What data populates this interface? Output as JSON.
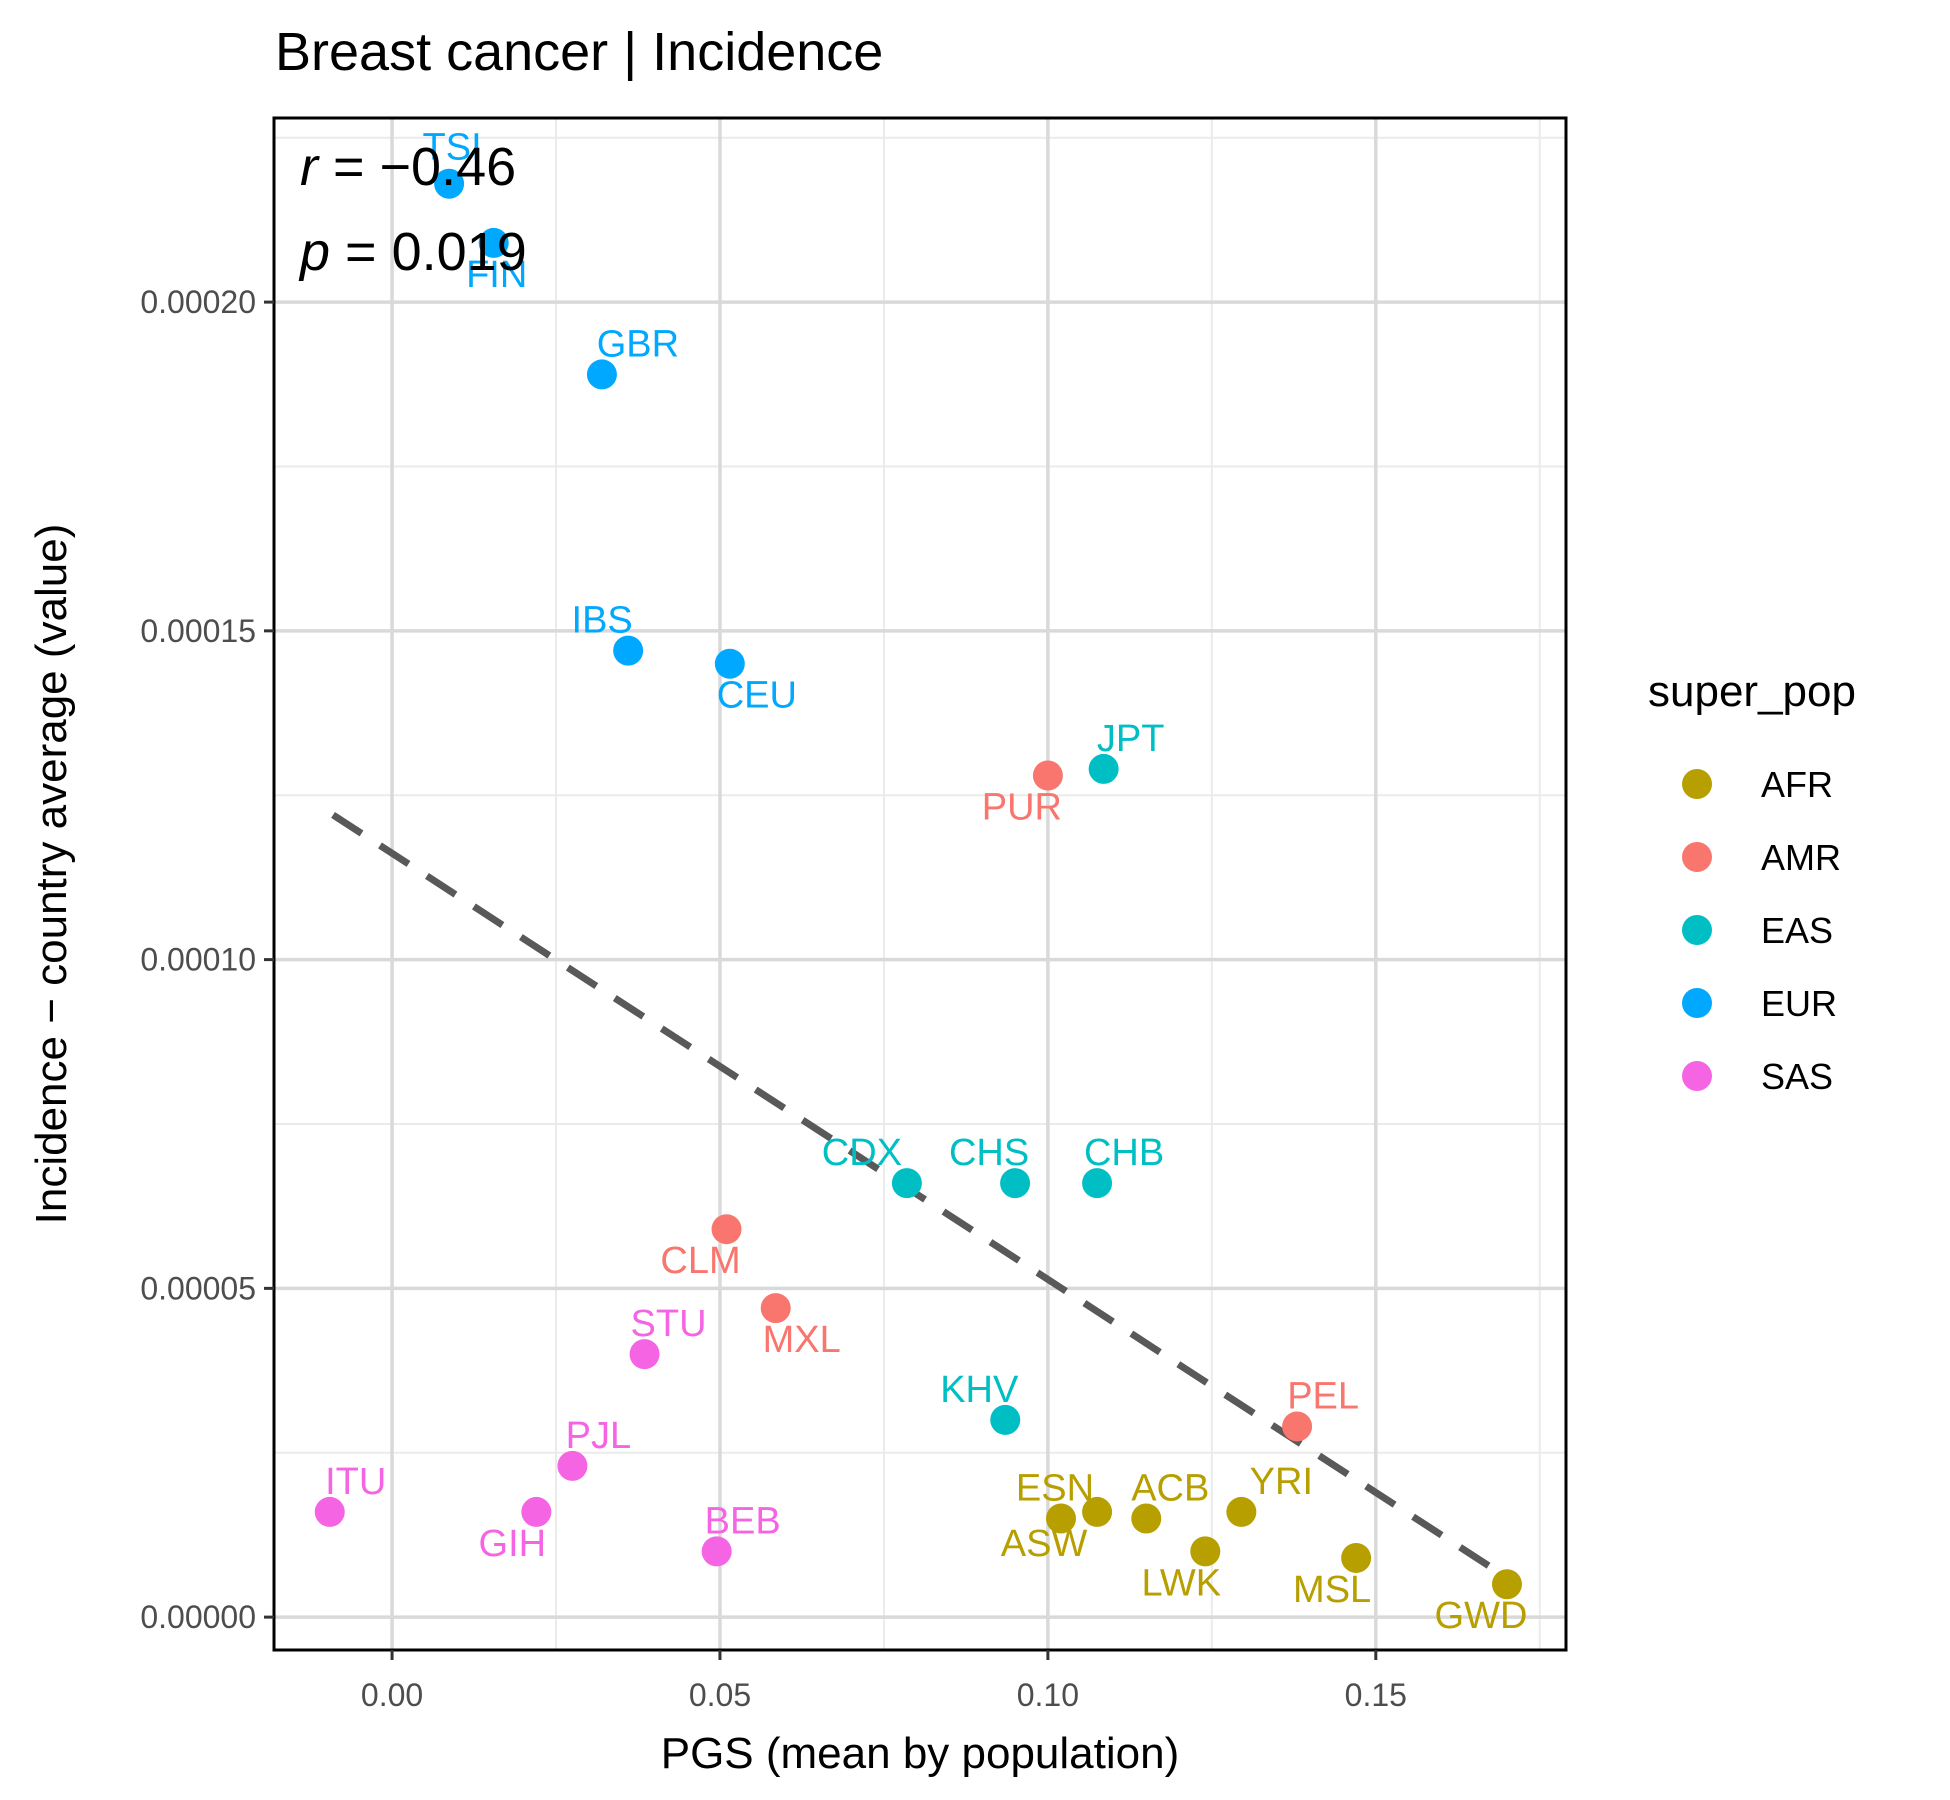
{
  "chart_data": {
    "type": "scatter",
    "title": "Breast cancer | Incidence",
    "xlabel": "PGS (mean by population)",
    "ylabel": "Incidence − country average (value)",
    "xlim": [
      -0.018,
      0.179
    ],
    "ylim": [
      -5e-06,
      0.000228
    ],
    "x_ticks": [
      0.0,
      0.05,
      0.1,
      0.15
    ],
    "x_tick_labels": [
      "0.00",
      "0.05",
      "0.10",
      "0.15"
    ],
    "y_ticks": [
      0.0,
      5e-05,
      0.0001,
      0.00015,
      0.0002
    ],
    "y_tick_labels": [
      "0.00000",
      "0.00005",
      "0.00010",
      "0.00015",
      "0.00020"
    ],
    "grid": true,
    "stats": {
      "r_symbol": "r",
      "r_text": " = −0.46",
      "p_symbol": "p",
      "p_text": " = 0.019"
    },
    "trend_line": {
      "style": "dashed",
      "color": "#595959",
      "x": [
        -0.009,
        0.17
      ],
      "y": [
        0.000122,
        6e-06
      ]
    },
    "legend": {
      "title": "super_pop",
      "position": "right",
      "entries": [
        {
          "name": "AFR",
          "color": "#B79F00"
        },
        {
          "name": "AMR",
          "color": "#F8766D"
        },
        {
          "name": "EAS",
          "color": "#00BFC4"
        },
        {
          "name": "EUR",
          "color": "#00A9FF"
        },
        {
          "name": "SAS",
          "color": "#F564E3"
        }
      ]
    },
    "points": [
      {
        "label": "TSI",
        "group": "EUR",
        "x": 0.0087,
        "y": 0.000218,
        "ldx": 0.03,
        "ldy": -0.06
      },
      {
        "label": "FIN",
        "group": "EUR",
        "x": 0.0155,
        "y": 0.000209,
        "ldx": 0.03,
        "ldy": 0.05
      },
      {
        "label": "GBR",
        "group": "EUR",
        "x": 0.032,
        "y": 0.000189,
        "ldx": 0.36,
        "ldy": -0.05
      },
      {
        "label": "IBS",
        "group": "EUR",
        "x": 0.036,
        "y": 0.000147,
        "ldx": -0.26,
        "ldy": -0.05
      },
      {
        "label": "CEU",
        "group": "EUR",
        "x": 0.0515,
        "y": 0.000145,
        "ldx": 0.27,
        "ldy": 0.05
      },
      {
        "label": "JPT",
        "group": "EAS",
        "x": 0.1085,
        "y": 0.000129,
        "ldx": 0.27,
        "ldy": -0.05
      },
      {
        "label": "PUR",
        "group": "AMR",
        "x": 0.1,
        "y": 0.000128,
        "ldx": -0.26,
        "ldy": 0.05
      },
      {
        "label": "CDX",
        "group": "EAS",
        "x": 0.0785,
        "y": 6.6e-05,
        "ldx": -0.45,
        "ldy": -0.05
      },
      {
        "label": "CHS",
        "group": "EAS",
        "x": 0.095,
        "y": 6.6e-05,
        "ldx": -0.26,
        "ldy": -0.05
      },
      {
        "label": "CHB",
        "group": "EAS",
        "x": 0.1075,
        "y": 6.6e-05,
        "ldx": 0.27,
        "ldy": -0.05
      },
      {
        "label": "CLM",
        "group": "AMR",
        "x": 0.051,
        "y": 5.9e-05,
        "ldx": -0.26,
        "ldy": 0.05
      },
      {
        "label": "MXL",
        "group": "AMR",
        "x": 0.0585,
        "y": 4.7e-05,
        "ldx": 0.26,
        "ldy": 0.05
      },
      {
        "label": "STU",
        "group": "SAS",
        "x": 0.0385,
        "y": 4e-05,
        "ldx": 0.24,
        "ldy": -0.05
      },
      {
        "label": "KHV",
        "group": "EAS",
        "x": 0.0935,
        "y": 3e-05,
        "ldx": -0.26,
        "ldy": -0.05
      },
      {
        "label": "PEL",
        "group": "AMR",
        "x": 0.138,
        "y": 2.9e-05,
        "ldx": 0.26,
        "ldy": -0.05
      },
      {
        "label": "PJL",
        "group": "SAS",
        "x": 0.0275,
        "y": 2.3e-05,
        "ldx": 0.26,
        "ldy": -0.05
      },
      {
        "label": "ITU",
        "group": "SAS",
        "x": -0.0095,
        "y": 1.6e-05,
        "ldx": 0.26,
        "ldy": -0.05
      },
      {
        "label": "GIH",
        "group": "SAS",
        "x": 0.022,
        "y": 1.6e-05,
        "ldx": -0.24,
        "ldy": 0.05
      },
      {
        "label": "BEB",
        "group": "SAS",
        "x": 0.0495,
        "y": 1e-05,
        "ldx": 0.26,
        "ldy": -0.05
      },
      {
        "label": "ESN",
        "group": "AFR",
        "x": 0.102,
        "y": 1.5e-05,
        "ldx": -0.06,
        "ldy": -0.05
      },
      {
        "label": "ASW",
        "group": "AFR",
        "x": 0.1075,
        "y": 1.6e-05,
        "ldx": -0.53,
        "ldy": 0.05
      },
      {
        "label": "ACB",
        "group": "AFR",
        "x": 0.115,
        "y": 1.5e-05,
        "ldx": 0.24,
        "ldy": -0.05
      },
      {
        "label": "LWK",
        "group": "AFR",
        "x": 0.124,
        "y": 1e-05,
        "ldx": -0.24,
        "ldy": 0.05
      },
      {
        "label": "YRI",
        "group": "AFR",
        "x": 0.1295,
        "y": 1.6e-05,
        "ldx": 0.4,
        "ldy": -0.05
      },
      {
        "label": "MSL",
        "group": "AFR",
        "x": 0.147,
        "y": 9e-06,
        "ldx": -0.24,
        "ldy": 0.05
      },
      {
        "label": "GWD",
        "group": "AFR",
        "x": 0.17,
        "y": 5e-06,
        "ldx": -0.26,
        "ldy": 0.05
      }
    ]
  }
}
